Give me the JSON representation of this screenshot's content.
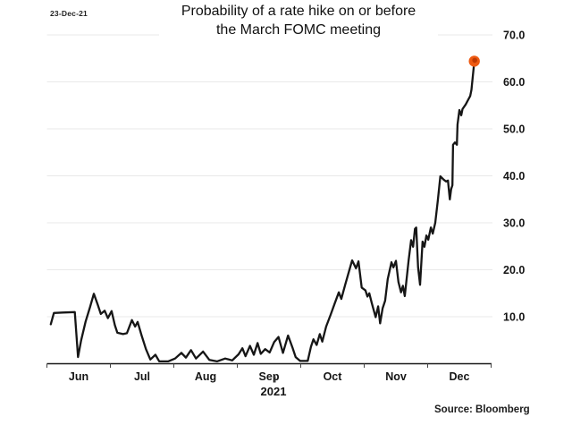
{
  "header": {
    "date_label": "23-Dec-21",
    "title_line1": "Probability of a rate hike on or before",
    "title_line2": "the March FOMC meeting"
  },
  "footer": {
    "year_label": "2021",
    "source_label": "Source: Bloomberg"
  },
  "chart_data": {
    "type": "line",
    "title": "Probability of a rate hike on or before the March FOMC meeting",
    "subtitle_date": "23-Dec-21",
    "source": "Source: Bloomberg",
    "xlabel": "2021",
    "ylabel": "",
    "legend": "none",
    "grid": "horizontal-only",
    "grid_color": "#e9e9e9",
    "axis_color": "#1a1a1a",
    "line_color": "#161616",
    "marker_color": "#ee5a12",
    "marker_inner_color": "#bf3a04",
    "x_axis": {
      "month_labels": [
        "Jun",
        "Jul",
        "Aug",
        "Sep",
        "Oct",
        "Nov",
        "Dec"
      ],
      "months_span": 7,
      "year_label": "2021"
    },
    "y_axis": {
      "side": "right",
      "ticks": [
        10,
        20,
        30,
        40,
        50,
        60,
        70
      ],
      "tick_labels": [
        "10.0",
        "20.0",
        "30.0",
        "40.0",
        "50.0",
        "60.0",
        "70.0"
      ],
      "ylim": [
        0,
        70
      ]
    },
    "series": [
      {
        "name": "Probability of a March rate hike (%)",
        "x_unit": "months-from-Jun-1-2021",
        "points": [
          [
            0.06,
            8.4
          ],
          [
            0.11,
            10.8
          ],
          [
            0.25,
            10.9
          ],
          [
            0.44,
            11.0
          ],
          [
            0.49,
            1.4
          ],
          [
            0.54,
            5.0
          ],
          [
            0.61,
            9.0
          ],
          [
            0.68,
            12.1
          ],
          [
            0.74,
            14.9
          ],
          [
            0.8,
            12.6
          ],
          [
            0.85,
            10.6
          ],
          [
            0.91,
            11.3
          ],
          [
            0.96,
            9.7
          ],
          [
            1.02,
            11.2
          ],
          [
            1.07,
            8.2
          ],
          [
            1.11,
            6.6
          ],
          [
            1.2,
            6.3
          ],
          [
            1.26,
            6.5
          ],
          [
            1.34,
            9.3
          ],
          [
            1.39,
            7.9
          ],
          [
            1.43,
            8.9
          ],
          [
            1.49,
            6.1
          ],
          [
            1.56,
            3.1
          ],
          [
            1.63,
            0.9
          ],
          [
            1.71,
            1.9
          ],
          [
            1.77,
            0.5
          ],
          [
            1.91,
            0.5
          ],
          [
            2.02,
            1.1
          ],
          [
            2.12,
            2.3
          ],
          [
            2.19,
            1.3
          ],
          [
            2.27,
            2.9
          ],
          [
            2.35,
            1.1
          ],
          [
            2.46,
            2.6
          ],
          [
            2.56,
            0.8
          ],
          [
            2.68,
            0.5
          ],
          [
            2.81,
            1.1
          ],
          [
            2.92,
            0.7
          ],
          [
            3.02,
            2.0
          ],
          [
            3.08,
            3.3
          ],
          [
            3.13,
            1.6
          ],
          [
            3.2,
            3.8
          ],
          [
            3.26,
            1.9
          ],
          [
            3.32,
            4.4
          ],
          [
            3.37,
            2.1
          ],
          [
            3.44,
            3.1
          ],
          [
            3.51,
            2.4
          ],
          [
            3.58,
            4.6
          ],
          [
            3.65,
            5.7
          ],
          [
            3.72,
            2.3
          ],
          [
            3.8,
            6.0
          ],
          [
            3.87,
            3.4
          ],
          [
            3.92,
            1.4
          ],
          [
            3.99,
            0.6
          ],
          [
            4.11,
            0.6
          ],
          [
            4.16,
            3.6
          ],
          [
            4.2,
            5.2
          ],
          [
            4.25,
            4.0
          ],
          [
            4.3,
            6.3
          ],
          [
            4.34,
            4.7
          ],
          [
            4.4,
            7.9
          ],
          [
            4.47,
            10.4
          ],
          [
            4.54,
            13.0
          ],
          [
            4.6,
            15.2
          ],
          [
            4.64,
            13.8
          ],
          [
            4.7,
            16.8
          ],
          [
            4.75,
            19.2
          ],
          [
            4.81,
            22.0
          ],
          [
            4.87,
            20.3
          ],
          [
            4.91,
            21.8
          ],
          [
            4.96,
            16.2
          ],
          [
            5.02,
            15.6
          ],
          [
            5.05,
            14.3
          ],
          [
            5.08,
            15.0
          ],
          [
            5.12,
            12.9
          ],
          [
            5.18,
            9.9
          ],
          [
            5.22,
            12.2
          ],
          [
            5.25,
            8.6
          ],
          [
            5.29,
            11.8
          ],
          [
            5.33,
            13.4
          ],
          [
            5.37,
            18.0
          ],
          [
            5.43,
            21.6
          ],
          [
            5.46,
            20.5
          ],
          [
            5.5,
            21.9
          ],
          [
            5.54,
            17.4
          ],
          [
            5.58,
            15.2
          ],
          [
            5.61,
            16.6
          ],
          [
            5.64,
            14.4
          ],
          [
            5.7,
            22.0
          ],
          [
            5.74,
            26.3
          ],
          [
            5.77,
            24.9
          ],
          [
            5.8,
            28.7
          ],
          [
            5.82,
            29.0
          ],
          [
            5.85,
            20.5
          ],
          [
            5.88,
            16.8
          ],
          [
            5.92,
            26.0
          ],
          [
            5.95,
            24.9
          ],
          [
            5.98,
            27.3
          ],
          [
            6.01,
            26.4
          ],
          [
            6.05,
            29.0
          ],
          [
            6.08,
            27.7
          ],
          [
            6.12,
            30.0
          ],
          [
            6.16,
            34.8
          ],
          [
            6.2,
            39.9
          ],
          [
            6.25,
            39.2
          ],
          [
            6.29,
            38.8
          ],
          [
            6.32,
            39.0
          ],
          [
            6.35,
            35.0
          ],
          [
            6.37,
            37.2
          ],
          [
            6.39,
            38.0
          ],
          [
            6.4,
            46.6
          ],
          [
            6.43,
            47.1
          ],
          [
            6.46,
            46.6
          ],
          [
            6.47,
            50.9
          ],
          [
            6.5,
            54.0
          ],
          [
            6.53,
            52.9
          ],
          [
            6.55,
            54.2
          ],
          [
            6.6,
            55.2
          ],
          [
            6.64,
            56.2
          ],
          [
            6.67,
            57.0
          ],
          [
            6.69,
            58.3
          ],
          [
            6.73,
            63.6
          ]
        ]
      }
    ],
    "end_marker": {
      "x": 6.735,
      "y": 64.4
    }
  }
}
